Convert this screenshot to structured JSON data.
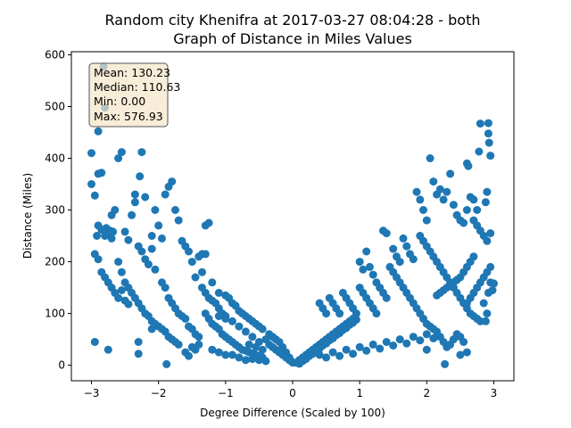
{
  "chart_data": {
    "type": "scatter",
    "title_line1": "Random city Khenifra at 2017-03-27 08:04:28  - both",
    "title_line2": "Graph of Distance in Miles Values",
    "xlabel": "Degree Difference (Scaled by 100)",
    "ylabel": "Distance (Miles)",
    "xlim": [
      -3.3,
      3.3
    ],
    "ylim": [
      -30,
      606
    ],
    "xticks": [
      -3,
      -2,
      -1,
      0,
      1,
      2,
      3
    ],
    "yticks": [
      0,
      100,
      200,
      300,
      400,
      500,
      600
    ],
    "grid": false,
    "marker_color": "#1f77b4",
    "stats_box": {
      "lines": [
        "Mean: 130.23",
        "Median: 110.63",
        "Min: 0.00",
        "Max: 576.93"
      ],
      "background": "#f5e6c8",
      "placement": "top-left"
    },
    "points": [
      [
        -3.0,
        410
      ],
      [
        -3.0,
        350
      ],
      [
        -2.95,
        215
      ],
      [
        -2.9,
        205
      ],
      [
        -2.92,
        250
      ],
      [
        -2.9,
        270
      ],
      [
        -2.85,
        262
      ],
      [
        -2.8,
        250
      ],
      [
        -2.78,
        265
      ],
      [
        -2.75,
        255
      ],
      [
        -2.72,
        260
      ],
      [
        -2.7,
        245
      ],
      [
        -2.68,
        258
      ],
      [
        -2.85,
        180
      ],
      [
        -2.8,
        170
      ],
      [
        -2.75,
        160
      ],
      [
        -2.7,
        150
      ],
      [
        -2.65,
        140
      ],
      [
        -2.6,
        130
      ],
      [
        -2.55,
        145
      ],
      [
        -2.5,
        125
      ],
      [
        -2.45,
        118
      ],
      [
        -2.95,
        45
      ],
      [
        -2.75,
        30
      ],
      [
        -2.9,
        370
      ],
      [
        -2.85,
        372
      ],
      [
        -2.9,
        452
      ],
      [
        -2.82,
        577
      ],
      [
        -2.8,
        498
      ],
      [
        -2.95,
        328
      ],
      [
        -2.7,
        290
      ],
      [
        -2.65,
        300
      ],
      [
        -2.6,
        400
      ],
      [
        -2.55,
        412
      ],
      [
        -2.5,
        258
      ],
      [
        -2.45,
        242
      ],
      [
        -2.4,
        290
      ],
      [
        -2.35,
        315
      ],
      [
        -2.3,
        230
      ],
      [
        -2.25,
        220
      ],
      [
        -2.2,
        205
      ],
      [
        -2.15,
        195
      ],
      [
        -2.1,
        250
      ],
      [
        -2.05,
        300
      ],
      [
        -2.0,
        270
      ],
      [
        -1.95,
        245
      ],
      [
        -1.9,
        330
      ],
      [
        -1.85,
        345
      ],
      [
        -1.8,
        355
      ],
      [
        -1.75,
        300
      ],
      [
        -1.7,
        280
      ],
      [
        -1.65,
        240
      ],
      [
        -1.6,
        230
      ],
      [
        -1.55,
        220
      ],
      [
        -1.5,
        200
      ],
      [
        -1.45,
        170
      ],
      [
        -1.4,
        210
      ],
      [
        -1.35,
        215
      ],
      [
        -2.28,
        365
      ],
      [
        -2.25,
        412
      ],
      [
        -2.35,
        330
      ],
      [
        -2.2,
        325
      ],
      [
        -2.1,
        225
      ],
      [
        -2.05,
        185
      ],
      [
        -1.95,
        160
      ],
      [
        -1.9,
        150
      ],
      [
        -1.85,
        130
      ],
      [
        -1.8,
        120
      ],
      [
        -1.75,
        110
      ],
      [
        -1.7,
        100
      ],
      [
        -1.65,
        95
      ],
      [
        -1.6,
        90
      ],
      [
        -1.55,
        75
      ],
      [
        -1.5,
        70
      ],
      [
        -1.45,
        60
      ],
      [
        -1.4,
        55
      ],
      [
        -2.6,
        200
      ],
      [
        -2.55,
        180
      ],
      [
        -2.5,
        160
      ],
      [
        -2.45,
        150
      ],
      [
        -2.4,
        140
      ],
      [
        -2.35,
        130
      ],
      [
        -2.3,
        120
      ],
      [
        -2.25,
        110
      ],
      [
        -2.2,
        100
      ],
      [
        -2.15,
        95
      ],
      [
        -2.1,
        85
      ],
      [
        -2.05,
        80
      ],
      [
        -2.0,
        75
      ],
      [
        -1.95,
        70
      ],
      [
        -1.9,
        65
      ],
      [
        -1.85,
        55
      ],
      [
        -1.8,
        50
      ],
      [
        -1.75,
        45
      ],
      [
        -2.3,
        45
      ],
      [
        -2.3,
        22
      ],
      [
        -2.1,
        70
      ],
      [
        -1.88,
        2
      ],
      [
        -1.7,
        40
      ],
      [
        -1.6,
        25
      ],
      [
        -1.55,
        18
      ],
      [
        -1.5,
        35
      ],
      [
        -1.45,
        30
      ],
      [
        -1.4,
        40
      ],
      [
        -1.35,
        150
      ],
      [
        -1.3,
        140
      ],
      [
        -1.25,
        130
      ],
      [
        -1.2,
        125
      ],
      [
        -1.15,
        120
      ],
      [
        -1.1,
        110
      ],
      [
        -1.05,
        100
      ],
      [
        -1.0,
        95
      ],
      [
        -1.3,
        270
      ],
      [
        -1.25,
        275
      ],
      [
        -1.3,
        215
      ],
      [
        -1.35,
        180
      ],
      [
        -1.2,
        160
      ],
      [
        -1.1,
        140
      ],
      [
        -1.0,
        135
      ],
      [
        -0.95,
        130
      ],
      [
        -0.9,
        120
      ],
      [
        -0.85,
        115
      ],
      [
        -0.8,
        105
      ],
      [
        -0.75,
        100
      ],
      [
        -0.7,
        95
      ],
      [
        -0.65,
        90
      ],
      [
        -0.6,
        85
      ],
      [
        -0.55,
        80
      ],
      [
        -0.5,
        75
      ],
      [
        -0.45,
        70
      ],
      [
        -1.3,
        100
      ],
      [
        -1.25,
        90
      ],
      [
        -1.2,
        80
      ],
      [
        -1.15,
        75
      ],
      [
        -1.1,
        70
      ],
      [
        -1.05,
        60
      ],
      [
        -1.0,
        55
      ],
      [
        -0.95,
        50
      ],
      [
        -0.9,
        45
      ],
      [
        -0.85,
        40
      ],
      [
        -0.8,
        35
      ],
      [
        -0.75,
        30
      ],
      [
        -0.7,
        28
      ],
      [
        -0.65,
        25
      ],
      [
        -0.6,
        22
      ],
      [
        -0.55,
        20
      ],
      [
        -0.5,
        18
      ],
      [
        -0.45,
        15
      ],
      [
        -1.2,
        30
      ],
      [
        -1.1,
        25
      ],
      [
        -1.0,
        20
      ],
      [
        -0.9,
        20
      ],
      [
        -0.8,
        15
      ],
      [
        -0.7,
        10
      ],
      [
        -0.6,
        12
      ],
      [
        -0.5,
        10
      ],
      [
        -0.4,
        8
      ],
      [
        -0.35,
        60
      ],
      [
        -0.3,
        55
      ],
      [
        -0.25,
        50
      ],
      [
        -0.2,
        45
      ],
      [
        -0.15,
        35
      ],
      [
        -0.1,
        25
      ],
      [
        -0.05,
        15
      ],
      [
        -0.02,
        8
      ],
      [
        0.0,
        5
      ],
      [
        -0.4,
        50
      ],
      [
        -0.35,
        40
      ],
      [
        -0.3,
        35
      ],
      [
        -0.25,
        30
      ],
      [
        -0.2,
        25
      ],
      [
        -0.15,
        20
      ],
      [
        -0.1,
        15
      ],
      [
        -0.05,
        10
      ],
      [
        -0.5,
        45
      ],
      [
        -0.6,
        55
      ],
      [
        -0.7,
        65
      ],
      [
        -0.8,
        75
      ],
      [
        -0.9,
        85
      ],
      [
        -1.0,
        90
      ],
      [
        -1.1,
        95
      ],
      [
        -0.55,
        35
      ],
      [
        -0.65,
        40
      ],
      [
        -0.45,
        30
      ],
      [
        0.05,
        5
      ],
      [
        0.1,
        10
      ],
      [
        0.15,
        15
      ],
      [
        0.2,
        20
      ],
      [
        0.25,
        25
      ],
      [
        0.3,
        30
      ],
      [
        0.35,
        35
      ],
      [
        0.4,
        40
      ],
      [
        0.45,
        45
      ],
      [
        0.5,
        50
      ],
      [
        0.55,
        55
      ],
      [
        0.6,
        60
      ],
      [
        0.65,
        65
      ],
      [
        0.7,
        70
      ],
      [
        0.75,
        75
      ],
      [
        0.8,
        80
      ],
      [
        0.85,
        85
      ],
      [
        0.9,
        90
      ],
      [
        0.1,
        3
      ],
      [
        0.15,
        8
      ],
      [
        0.2,
        12
      ],
      [
        0.25,
        18
      ],
      [
        0.3,
        22
      ],
      [
        0.35,
        28
      ],
      [
        0.4,
        32
      ],
      [
        0.45,
        38
      ],
      [
        0.5,
        42
      ],
      [
        0.55,
        48
      ],
      [
        0.6,
        52
      ],
      [
        0.65,
        58
      ],
      [
        0.7,
        62
      ],
      [
        0.75,
        68
      ],
      [
        0.8,
        72
      ],
      [
        0.85,
        78
      ],
      [
        0.9,
        82
      ],
      [
        0.95,
        88
      ],
      [
        0.4,
        120
      ],
      [
        0.45,
        110
      ],
      [
        0.5,
        100
      ],
      [
        0.55,
        130
      ],
      [
        0.6,
        120
      ],
      [
        0.65,
        110
      ],
      [
        0.7,
        100
      ],
      [
        0.75,
        140
      ],
      [
        0.8,
        130
      ],
      [
        0.85,
        120
      ],
      [
        0.9,
        110
      ],
      [
        0.95,
        100
      ],
      [
        1.0,
        150
      ],
      [
        1.05,
        140
      ],
      [
        1.1,
        130
      ],
      [
        1.15,
        120
      ],
      [
        1.2,
        110
      ],
      [
        1.25,
        100
      ],
      [
        0.4,
        20
      ],
      [
        0.5,
        15
      ],
      [
        0.6,
        25
      ],
      [
        0.7,
        18
      ],
      [
        0.8,
        30
      ],
      [
        0.9,
        22
      ],
      [
        1.0,
        35
      ],
      [
        1.1,
        28
      ],
      [
        1.2,
        40
      ],
      [
        1.3,
        32
      ],
      [
        1.4,
        45
      ],
      [
        1.5,
        38
      ],
      [
        1.6,
        50
      ],
      [
        1.7,
        42
      ],
      [
        1.8,
        55
      ],
      [
        1.9,
        48
      ],
      [
        2.0,
        60
      ],
      [
        2.1,
        52
      ],
      [
        1.0,
        200
      ],
      [
        1.05,
        185
      ],
      [
        1.1,
        220
      ],
      [
        1.15,
        190
      ],
      [
        1.2,
        175
      ],
      [
        1.25,
        160
      ],
      [
        1.3,
        150
      ],
      [
        1.35,
        140
      ],
      [
        1.4,
        130
      ],
      [
        1.45,
        190
      ],
      [
        1.5,
        180
      ],
      [
        1.55,
        170
      ],
      [
        1.6,
        160
      ],
      [
        1.65,
        150
      ],
      [
        1.7,
        140
      ],
      [
        1.75,
        130
      ],
      [
        1.8,
        120
      ],
      [
        1.85,
        110
      ],
      [
        1.35,
        260
      ],
      [
        1.4,
        255
      ],
      [
        1.5,
        225
      ],
      [
        1.55,
        210
      ],
      [
        1.6,
        200
      ],
      [
        1.65,
        245
      ],
      [
        1.7,
        230
      ],
      [
        1.75,
        215
      ],
      [
        1.8,
        205
      ],
      [
        1.85,
        335
      ],
      [
        1.9,
        320
      ],
      [
        1.95,
        300
      ],
      [
        2.0,
        280
      ],
      [
        2.05,
        400
      ],
      [
        2.1,
        355
      ],
      [
        2.15,
        330
      ],
      [
        2.2,
        340
      ],
      [
        2.25,
        320
      ],
      [
        1.9,
        250
      ],
      [
        1.95,
        240
      ],
      [
        2.0,
        230
      ],
      [
        2.05,
        220
      ],
      [
        2.1,
        210
      ],
      [
        2.15,
        200
      ],
      [
        2.2,
        190
      ],
      [
        2.25,
        180
      ],
      [
        2.3,
        170
      ],
      [
        2.35,
        160
      ],
      [
        2.4,
        150
      ],
      [
        2.45,
        140
      ],
      [
        2.5,
        130
      ],
      [
        2.55,
        120
      ],
      [
        2.6,
        110
      ],
      [
        2.65,
        100
      ],
      [
        2.7,
        95
      ],
      [
        2.75,
        90
      ],
      [
        1.9,
        100
      ],
      [
        1.95,
        90
      ],
      [
        2.0,
        80
      ],
      [
        2.05,
        75
      ],
      [
        2.1,
        70
      ],
      [
        2.15,
        65
      ],
      [
        2.2,
        55
      ],
      [
        2.25,
        45
      ],
      [
        2.3,
        35
      ],
      [
        2.35,
        40
      ],
      [
        2.4,
        50
      ],
      [
        2.45,
        60
      ],
      [
        2.5,
        55
      ],
      [
        2.55,
        45
      ],
      [
        2.6,
        25
      ],
      [
        2.27,
        2
      ],
      [
        2.5,
        20
      ],
      [
        2.0,
        30
      ],
      [
        2.35,
        370
      ],
      [
        2.3,
        335
      ],
      [
        2.4,
        310
      ],
      [
        2.45,
        290
      ],
      [
        2.5,
        280
      ],
      [
        2.55,
        275
      ],
      [
        2.6,
        300
      ],
      [
        2.65,
        325
      ],
      [
        2.7,
        320
      ],
      [
        2.75,
        300
      ],
      [
        2.78,
        413
      ],
      [
        2.8,
        467
      ],
      [
        2.92,
        468
      ],
      [
        2.92,
        448
      ],
      [
        2.93,
        430
      ],
      [
        2.95,
        405
      ],
      [
        2.9,
        335
      ],
      [
        2.88,
        315
      ],
      [
        2.6,
        390
      ],
      [
        2.62,
        385
      ],
      [
        2.7,
        280
      ],
      [
        2.75,
        270
      ],
      [
        2.8,
        260
      ],
      [
        2.85,
        250
      ],
      [
        2.9,
        240
      ],
      [
        2.95,
        255
      ],
      [
        2.95,
        190
      ],
      [
        2.9,
        180
      ],
      [
        2.85,
        170
      ],
      [
        2.8,
        160
      ],
      [
        2.75,
        150
      ],
      [
        2.7,
        140
      ],
      [
        2.65,
        130
      ],
      [
        2.6,
        120
      ],
      [
        2.95,
        160
      ],
      [
        3.0,
        158
      ],
      [
        2.85,
        120
      ],
      [
        2.9,
        100
      ],
      [
        2.8,
        85
      ],
      [
        2.88,
        85
      ],
      [
        2.92,
        140
      ],
      [
        2.98,
        145
      ],
      [
        2.7,
        210
      ],
      [
        2.65,
        200
      ],
      [
        2.6,
        190
      ],
      [
        2.55,
        180
      ],
      [
        2.5,
        170
      ],
      [
        2.45,
        165
      ],
      [
        2.4,
        160
      ],
      [
        2.35,
        155
      ],
      [
        2.3,
        150
      ],
      [
        2.25,
        145
      ],
      [
        2.2,
        140
      ],
      [
        2.15,
        135
      ]
    ]
  }
}
